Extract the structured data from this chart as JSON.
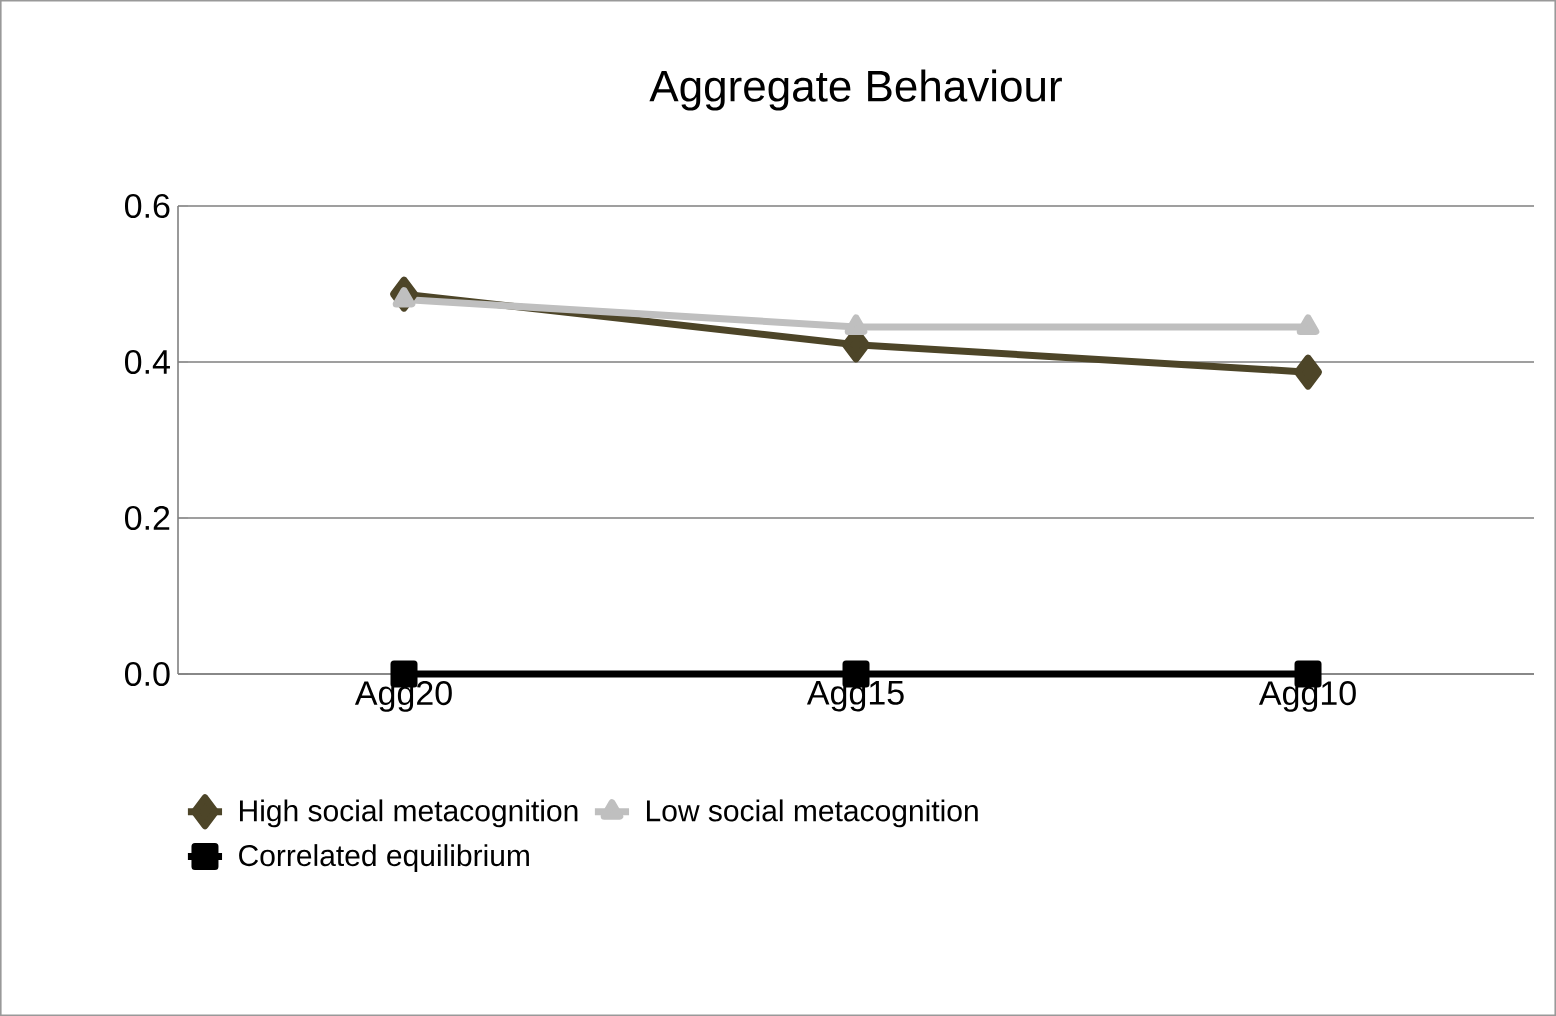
{
  "chart_data": {
    "type": "line",
    "title": "Aggregate Behaviour",
    "categories": [
      "Agg20",
      "Agg15",
      "Agg10"
    ],
    "series": [
      {
        "name": "High social metacognition",
        "color": "#4d4528",
        "marker": "diamond",
        "values": [
          0.487,
          0.422,
          0.387
        ]
      },
      {
        "name": "Low social metacognition",
        "color": "#bfbfbf",
        "marker": "triangle",
        "values": [
          0.48,
          0.445,
          0.445
        ]
      },
      {
        "name": "Correlated equilibrium",
        "color": "#000000",
        "marker": "square",
        "values": [
          0,
          0,
          0
        ]
      }
    ],
    "ylim": [
      0,
      0.6
    ],
    "yticks": [
      {
        "value": 0,
        "label": "0.0"
      },
      {
        "value": 0.2,
        "label": "0.2"
      },
      {
        "value": 0.4,
        "label": "0.4"
      },
      {
        "value": 0.6,
        "label": "0.6"
      }
    ],
    "grid": "y",
    "legend": "bottom",
    "line_style": "solid"
  }
}
